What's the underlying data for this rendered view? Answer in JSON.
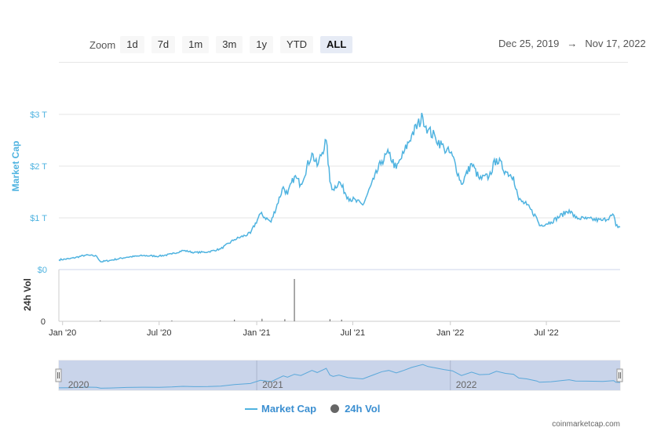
{
  "toolbar": {
    "zoom_label": "Zoom",
    "buttons": [
      "1d",
      "7d",
      "1m",
      "3m",
      "1y",
      "YTD",
      "ALL"
    ],
    "active": "ALL"
  },
  "date_range": {
    "from": "Dec 25, 2019",
    "arrow": "→",
    "to": "Nov 17, 2022"
  },
  "chart_data": {
    "type": "line",
    "title": "",
    "series": [
      {
        "name": "Market Cap",
        "color": "#4fb3e0",
        "unit": "USD trillions",
        "points": [
          [
            "2019-12-25",
            0.19
          ],
          [
            "2020-01-15",
            0.21
          ],
          [
            "2020-02-14",
            0.28
          ],
          [
            "2020-03-05",
            0.26
          ],
          [
            "2020-03-13",
            0.15
          ],
          [
            "2020-04-01",
            0.18
          ],
          [
            "2020-05-01",
            0.24
          ],
          [
            "2020-06-01",
            0.27
          ],
          [
            "2020-07-01",
            0.26
          ],
          [
            "2020-07-25",
            0.3
          ],
          [
            "2020-08-15",
            0.37
          ],
          [
            "2020-09-05",
            0.33
          ],
          [
            "2020-10-01",
            0.34
          ],
          [
            "2020-10-25",
            0.4
          ],
          [
            "2020-11-20",
            0.58
          ],
          [
            "2020-12-20",
            0.7
          ],
          [
            "2021-01-08",
            1.08
          ],
          [
            "2021-01-28",
            0.92
          ],
          [
            "2021-02-20",
            1.6
          ],
          [
            "2021-02-28",
            1.45
          ],
          [
            "2021-03-13",
            1.8
          ],
          [
            "2021-03-25",
            1.65
          ],
          [
            "2021-04-15",
            2.25
          ],
          [
            "2021-04-25",
            2.0
          ],
          [
            "2021-05-12",
            2.5
          ],
          [
            "2021-05-19",
            1.7
          ],
          [
            "2021-05-25",
            1.55
          ],
          [
            "2021-06-05",
            1.7
          ],
          [
            "2021-06-22",
            1.4
          ],
          [
            "2021-07-20",
            1.25
          ],
          [
            "2021-08-10",
            1.75
          ],
          [
            "2021-08-25",
            2.1
          ],
          [
            "2021-09-07",
            2.25
          ],
          [
            "2021-09-21",
            1.95
          ],
          [
            "2021-10-05",
            2.25
          ],
          [
            "2021-10-20",
            2.6
          ],
          [
            "2021-11-10",
            2.95
          ],
          [
            "2021-11-20",
            2.7
          ],
          [
            "2021-12-04",
            2.55
          ],
          [
            "2021-12-20",
            2.35
          ],
          [
            "2022-01-05",
            2.2
          ],
          [
            "2022-01-22",
            1.65
          ],
          [
            "2022-02-10",
            2.05
          ],
          [
            "2022-02-25",
            1.75
          ],
          [
            "2022-03-15",
            1.8
          ],
          [
            "2022-03-29",
            2.15
          ],
          [
            "2022-04-15",
            1.9
          ],
          [
            "2022-04-30",
            1.8
          ],
          [
            "2022-05-10",
            1.35
          ],
          [
            "2022-05-25",
            1.25
          ],
          [
            "2022-06-13",
            1.0
          ],
          [
            "2022-06-18",
            0.85
          ],
          [
            "2022-07-10",
            0.92
          ],
          [
            "2022-08-13",
            1.15
          ],
          [
            "2022-08-25",
            1.0
          ],
          [
            "2022-09-15",
            0.98
          ],
          [
            "2022-10-15",
            0.95
          ],
          [
            "2022-11-05",
            1.05
          ],
          [
            "2022-11-09",
            0.85
          ],
          [
            "2022-11-17",
            0.82
          ]
        ]
      },
      {
        "name": "24h Vol",
        "color": "#666666",
        "unit": "USD",
        "note": "mostly near zero; single spike around Mar 2021",
        "points": [
          [
            "2020-03-12",
            0.02
          ],
          [
            "2020-07-25",
            0.01
          ],
          [
            "2020-11-20",
            0.04
          ],
          [
            "2021-01-11",
            0.06
          ],
          [
            "2021-02-23",
            0.05
          ],
          [
            "2021-03-13",
            1.0
          ],
          [
            "2021-05-19",
            0.05
          ],
          [
            "2021-06-10",
            0.04
          ]
        ]
      }
    ],
    "x_ticks": [
      "Jan '20",
      "Jul '20",
      "Jan '21",
      "Jul '21",
      "Jan '22",
      "Jul '22"
    ],
    "x_tick_dates": [
      "2020-01-01",
      "2020-07-01",
      "2021-01-01",
      "2021-07-01",
      "2022-01-01",
      "2022-07-01"
    ],
    "y_ticks": [
      "$0",
      "$1 T",
      "$2 T",
      "$3 T"
    ],
    "y_tick_values": [
      0,
      1,
      2,
      3
    ],
    "ylabel": "Market Cap",
    "ylim": [
      0,
      3
    ],
    "vol_ylabel": "24h Vol",
    "vol_y_ticks": [
      "0"
    ],
    "xlim": [
      "2019-12-25",
      "2022-11-17"
    ],
    "navigator_labels": [
      "2020",
      "2021",
      "2022"
    ],
    "navigator_label_dates": [
      "2020-01-01",
      "2021-01-01",
      "2022-01-01"
    ],
    "grid": true,
    "legend": "bottom-center"
  },
  "legend": {
    "market_cap": "Market Cap",
    "volume": "24h Vol"
  },
  "credits": "coinmarketcap.com"
}
